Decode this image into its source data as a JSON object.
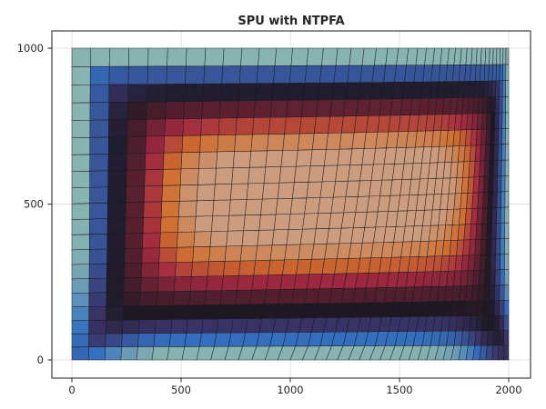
{
  "chart_data": {
    "type": "heatmap",
    "subtype": "pcolormesh-distorted-quadrilateral-grid",
    "title": "SPU with NTPFA",
    "xlabel": "",
    "ylabel": "",
    "x_range": [
      0,
      2000
    ],
    "y_range": [
      0,
      1000
    ],
    "x_ticks": [
      0,
      500,
      1000,
      1500,
      2000
    ],
    "y_ticks": [
      0,
      500,
      1000
    ],
    "grid_on": true,
    "legend_position": "none",
    "background": "#ffffff",
    "frame_color": "#4d4d4d",
    "grid_color": "#e0e0e0",
    "tick_color": "#333333",
    "label_color": "#262626",
    "mesh": {
      "nx": 40,
      "ny": 20,
      "dx_first": 76,
      "dx_last": 24,
      "dy_first": 44,
      "dy_last": 56,
      "shear_amplitude": 230,
      "shear_x_power": 1.35,
      "shear_y_power": 0.7,
      "warp_y_amplitude": 20,
      "warp_y_center": 0.45,
      "line_color": "#16161f",
      "line_opacity": 0.85,
      "line_width": 0.55
    },
    "field": {
      "description": "saturation-front value: 0 at outer boundary rising to 1 in interior plateau",
      "front_width_cells": {
        "left": 5,
        "top": 5,
        "bottom": 7,
        "right": 9
      },
      "smooth_min_power": 3,
      "corner_boosts": [
        {
          "corner": "bottom-left",
          "amplitude": 0.16,
          "sigma_i": 2.8,
          "sigma_j": 4.5
        },
        {
          "corner": "bottom-right",
          "amplitude": 0.3,
          "sigma_i": 6.0,
          "sigma_j": 3.5
        }
      ]
    },
    "colormap_stops": [
      {
        "v": 0.0,
        "color": "#87b3b0"
      },
      {
        "v": 0.14,
        "color": "#3470bf"
      },
      {
        "v": 0.28,
        "color": "#3a3468"
      },
      {
        "v": 0.42,
        "color": "#1c1823"
      },
      {
        "v": 0.57,
        "color": "#541f2e"
      },
      {
        "v": 0.71,
        "color": "#a12940"
      },
      {
        "v": 0.85,
        "color": "#d06e2e"
      },
      {
        "v": 1.0,
        "color": "#cb9c7d"
      }
    ]
  }
}
